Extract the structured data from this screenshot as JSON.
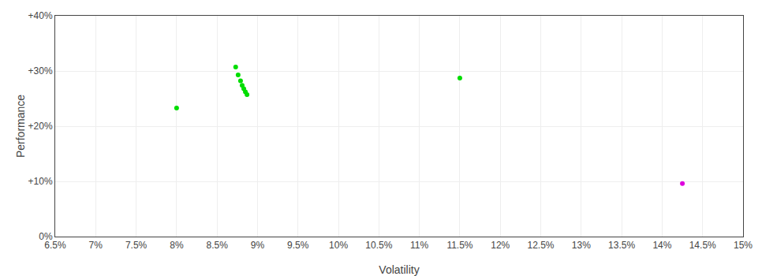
{
  "chart_data": {
    "type": "scatter",
    "xlabel": "Volatility",
    "ylabel": "Performance",
    "xlim": [
      0.065,
      0.15
    ],
    "ylim": [
      0.0,
      0.4
    ],
    "xticks": [
      {
        "value": 0.065,
        "label": "6.5%"
      },
      {
        "value": 0.07,
        "label": "7%"
      },
      {
        "value": 0.075,
        "label": "7.5%"
      },
      {
        "value": 0.08,
        "label": "8%"
      },
      {
        "value": 0.085,
        "label": "8.5%"
      },
      {
        "value": 0.09,
        "label": "9%"
      },
      {
        "value": 0.095,
        "label": "9.5%"
      },
      {
        "value": 0.1,
        "label": "10%"
      },
      {
        "value": 0.105,
        "label": "10.5%"
      },
      {
        "value": 0.11,
        "label": "11%"
      },
      {
        "value": 0.115,
        "label": "11.5%"
      },
      {
        "value": 0.12,
        "label": "12%"
      },
      {
        "value": 0.125,
        "label": "12.5%"
      },
      {
        "value": 0.13,
        "label": "13%"
      },
      {
        "value": 0.135,
        "label": "13.5%"
      },
      {
        "value": 0.14,
        "label": "14%"
      },
      {
        "value": 0.145,
        "label": "14.5%"
      },
      {
        "value": 0.15,
        "label": "15%"
      }
    ],
    "yticks": [
      {
        "value": 0.0,
        "label": "0%"
      },
      {
        "value": 0.1,
        "label": "+10%"
      },
      {
        "value": 0.2,
        "label": "+20%"
      },
      {
        "value": 0.3,
        "label": "+30%"
      },
      {
        "value": 0.4,
        "label": "+40%"
      }
    ],
    "grid": true,
    "series": [
      {
        "color": "#00dd00",
        "x": [
          0.08,
          0.0873,
          0.0876,
          0.0879,
          0.0881,
          0.0883,
          0.0885,
          0.0887,
          0.115
        ],
        "values": [
          0.233,
          0.307,
          0.293,
          0.282,
          0.274,
          0.268,
          0.262,
          0.257,
          0.287
        ]
      },
      {
        "color": "#dd00dd",
        "x": [
          0.1425
        ],
        "values": [
          0.096
        ]
      }
    ]
  }
}
